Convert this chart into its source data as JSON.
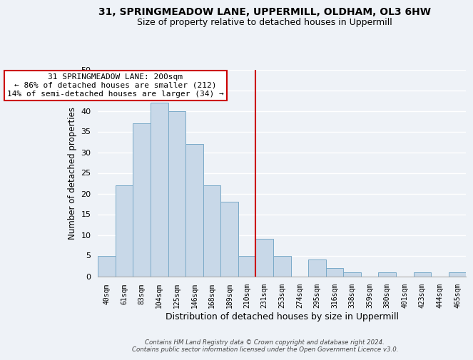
{
  "title": "31, SPRINGMEADOW LANE, UPPERMILL, OLDHAM, OL3 6HW",
  "subtitle": "Size of property relative to detached houses in Uppermill",
  "xlabel": "Distribution of detached houses by size in Uppermill",
  "ylabel": "Number of detached properties",
  "bar_color": "#c8d8e8",
  "bar_edge_color": "#7aaac8",
  "categories": [
    "40sqm",
    "61sqm",
    "83sqm",
    "104sqm",
    "125sqm",
    "146sqm",
    "168sqm",
    "189sqm",
    "210sqm",
    "231sqm",
    "253sqm",
    "274sqm",
    "295sqm",
    "316sqm",
    "338sqm",
    "359sqm",
    "380sqm",
    "401sqm",
    "423sqm",
    "444sqm",
    "465sqm"
  ],
  "values": [
    5,
    22,
    37,
    42,
    40,
    32,
    22,
    18,
    5,
    9,
    5,
    0,
    4,
    2,
    1,
    0,
    1,
    0,
    1,
    0,
    1
  ],
  "ylim": [
    0,
    50
  ],
  "yticks": [
    0,
    5,
    10,
    15,
    20,
    25,
    30,
    35,
    40,
    45,
    50
  ],
  "vline_x": 8.5,
  "vline_color": "#cc0000",
  "annotation_title": "31 SPRINGMEADOW LANE: 200sqm",
  "annotation_line1": "← 86% of detached houses are smaller (212)",
  "annotation_line2": "14% of semi-detached houses are larger (34) →",
  "annotation_box_color": "#ffffff",
  "annotation_box_edge_color": "#cc0000",
  "footer1": "Contains HM Land Registry data © Crown copyright and database right 2024.",
  "footer2": "Contains public sector information licensed under the Open Government Licence v3.0.",
  "background_color": "#eef2f7",
  "grid_color": "#ffffff",
  "title_fontsize": 10,
  "subtitle_fontsize": 9,
  "xlabel_fontsize": 9,
  "ylabel_fontsize": 8.5
}
